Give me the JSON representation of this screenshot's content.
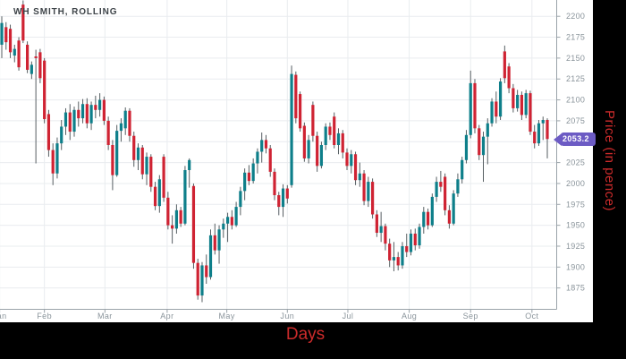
{
  "chart": {
    "last_price_label": "2053.2",
    "colors": {
      "background": "#000000",
      "panel_bg": "#ffffff",
      "up": "#0e7f8a",
      "down": "#cf2333",
      "wick": "#565e62",
      "grid": "#e9ecef",
      "axis": "#9aa3a9",
      "tick_text": "#8a949b",
      "title_text": "#3e4449",
      "axis_title_red": "#cc2b2b",
      "tag_bg": "#6c5bc4",
      "tag_text": "#ffffff"
    }
  },
  "chart_data": {
    "type": "candlestick",
    "title": "WH SMITH, ROLLING",
    "xlabel": "Days",
    "ylabel": "Price (in pence)",
    "legend": [],
    "grid": true,
    "last_price": 2053.2,
    "ylim": [
      1850,
      2220
    ],
    "y_ticks": [
      1875,
      1900,
      1925,
      1950,
      1975,
      2000,
      2025,
      2050,
      2075,
      2100,
      2125,
      2150,
      2175,
      2200
    ],
    "x_ticks": [
      {
        "label": "Jan",
        "i": -0.5
      },
      {
        "label": "Feb",
        "i": 10
      },
      {
        "label": "Mar",
        "i": 24.2
      },
      {
        "label": "Apr",
        "i": 38.8
      },
      {
        "label": "May",
        "i": 52.8
      },
      {
        "label": "Jun",
        "i": 67
      },
      {
        "label": "Jul",
        "i": 81.2
      },
      {
        "label": "Aug",
        "i": 95.6
      },
      {
        "label": "Sep",
        "i": 110
      },
      {
        "label": "Oct",
        "i": 124.4
      }
    ],
    "candles_format": [
      "open",
      "high",
      "low",
      "close"
    ],
    "candles": [
      [
        2166,
        2200,
        2150,
        2192
      ],
      [
        2187,
        2193,
        2160,
        2169
      ],
      [
        2185,
        2190,
        2150,
        2157
      ],
      [
        2153,
        2166,
        2145,
        2161
      ],
      [
        2171,
        2175,
        2135,
        2139
      ],
      [
        2214,
        2219,
        2168,
        2171
      ],
      [
        2166,
        2170,
        2132,
        2136
      ],
      [
        2131,
        2146,
        2125,
        2142
      ],
      [
        2152,
        2160,
        2024,
        2150
      ],
      [
        2157,
        2161,
        2120,
        2126
      ],
      [
        2147,
        2150,
        2072,
        2077
      ],
      [
        2083,
        2088,
        2032,
        2040
      ],
      [
        2040,
        2048,
        1998,
        2012
      ],
      [
        2012,
        2055,
        2006,
        2048
      ],
      [
        2048,
        2076,
        2040,
        2068
      ],
      [
        2068,
        2090,
        2058,
        2085
      ],
      [
        2085,
        2095,
        2052,
        2062
      ],
      [
        2062,
        2092,
        2056,
        2088
      ],
      [
        2088,
        2098,
        2068,
        2078
      ],
      [
        2078,
        2101,
        2072,
        2095
      ],
      [
        2095,
        2102,
        2066,
        2072
      ],
      [
        2072,
        2098,
        2064,
        2094
      ],
      [
        2094,
        2105,
        2078,
        2088
      ],
      [
        2088,
        2108,
        2080,
        2100
      ],
      [
        2100,
        2104,
        2070,
        2075
      ],
      [
        2075,
        2080,
        2040,
        2046
      ],
      [
        2046,
        2052,
        1992,
        2010
      ],
      [
        2010,
        2070,
        2008,
        2063
      ],
      [
        2063,
        2078,
        2050,
        2072
      ],
      [
        2066,
        2091,
        2058,
        2087
      ],
      [
        2087,
        2090,
        2050,
        2057
      ],
      [
        2057,
        2062,
        2020,
        2028
      ],
      [
        2028,
        2048,
        2016,
        2043
      ],
      [
        2043,
        2046,
        2005,
        2011
      ],
      [
        2011,
        2037,
        1998,
        2032
      ],
      [
        2032,
        2035,
        1990,
        1996
      ],
      [
        1996,
        2002,
        1968,
        1973
      ],
      [
        1973,
        2010,
        1965,
        2005
      ],
      [
        2032,
        2035,
        1978,
        1983
      ],
      [
        1983,
        1990,
        1945,
        1950
      ],
      [
        1950,
        1962,
        1928,
        1946
      ],
      [
        1946,
        1975,
        1940,
        1968
      ],
      [
        1968,
        1972,
        1948,
        1952
      ],
      [
        1952,
        2021,
        1950,
        2016
      ],
      [
        2016,
        2030,
        1995,
        2028
      ],
      [
        1997,
        2000,
        1898,
        1905
      ],
      [
        1905,
        1910,
        1861,
        1866
      ],
      [
        1866,
        1906,
        1858,
        1902
      ],
      [
        1902,
        1915,
        1880,
        1888
      ],
      [
        1888,
        1945,
        1885,
        1938
      ],
      [
        1938,
        1952,
        1915,
        1920
      ],
      [
        1920,
        1950,
        1904,
        1945
      ],
      [
        1945,
        1958,
        1935,
        1952
      ],
      [
        1952,
        1965,
        1930,
        1960
      ],
      [
        1960,
        1968,
        1945,
        1950
      ],
      [
        1950,
        1978,
        1948,
        1972
      ],
      [
        1972,
        1996,
        1962,
        1991
      ],
      [
        1991,
        2018,
        1980,
        2013
      ],
      [
        2013,
        2022,
        1998,
        2003
      ],
      [
        2003,
        2030,
        2000,
        2024
      ],
      [
        2024,
        2042,
        2012,
        2038
      ],
      [
        2038,
        2061,
        2025,
        2052
      ],
      [
        2052,
        2058,
        2036,
        2042
      ],
      [
        2042,
        2046,
        2008,
        2014
      ],
      [
        2014,
        2018,
        1980,
        1986
      ],
      [
        1986,
        1990,
        1962,
        1972
      ],
      [
        1972,
        1999,
        1960,
        1994
      ],
      [
        1994,
        1998,
        1976,
        1982
      ],
      [
        1998,
        2141,
        1995,
        2131
      ],
      [
        2130,
        2134,
        2072,
        2078
      ],
      [
        2107,
        2110,
        2062,
        2066
      ],
      [
        2069,
        2073,
        2026,
        2030
      ],
      [
        2030,
        2058,
        2024,
        2052
      ],
      [
        2094,
        2098,
        2050,
        2057
      ],
      [
        2057,
        2062,
        2014,
        2021
      ],
      [
        2021,
        2050,
        2018,
        2046
      ],
      [
        2046,
        2072,
        2040,
        2068
      ],
      [
        2068,
        2073,
        2052,
        2058
      ],
      [
        2080,
        2085,
        2042,
        2046
      ],
      [
        2046,
        2066,
        2035,
        2060
      ],
      [
        2060,
        2064,
        2030,
        2037
      ],
      [
        2037,
        2042,
        2016,
        2021
      ],
      [
        2021,
        2040,
        2012,
        2035
      ],
      [
        2035,
        2038,
        1998,
        2004
      ],
      [
        2004,
        2025,
        1996,
        2012
      ],
      [
        2012,
        2016,
        1974,
        1979
      ],
      [
        1979,
        2008,
        1972,
        2002
      ],
      [
        2002,
        2006,
        1958,
        1963
      ],
      [
        1963,
        1968,
        1936,
        1941
      ],
      [
        1941,
        1966,
        1930,
        1949
      ],
      [
        1949,
        1952,
        1920,
        1928
      ],
      [
        1928,
        1934,
        1900,
        1908
      ],
      [
        1908,
        1930,
        1895,
        1912
      ],
      [
        1912,
        1918,
        1896,
        1902
      ],
      [
        1902,
        1930,
        1898,
        1925
      ],
      [
        1925,
        1940,
        1912,
        1918
      ],
      [
        1918,
        1945,
        1914,
        1940
      ],
      [
        1940,
        1946,
        1920,
        1926
      ],
      [
        1926,
        1952,
        1922,
        1948
      ],
      [
        1948,
        1972,
        1940,
        1966
      ],
      [
        1966,
        1970,
        1945,
        1950
      ],
      [
        1950,
        1988,
        1948,
        1984
      ],
      [
        1984,
        2008,
        1978,
        2002
      ],
      [
        2002,
        2015,
        1990,
        1996
      ],
      [
        2008,
        2012,
        1962,
        1968
      ],
      [
        1968,
        1974,
        1946,
        1952
      ],
      [
        1952,
        1992,
        1950,
        1988
      ],
      [
        1988,
        2012,
        1984,
        2005
      ],
      [
        2005,
        2032,
        2000,
        2028
      ],
      [
        2028,
        2064,
        2024,
        2058
      ],
      [
        2058,
        2135,
        2054,
        2120
      ],
      [
        2120,
        2125,
        2060,
        2066
      ],
      [
        2066,
        2070,
        2028,
        2034
      ],
      [
        2034,
        2062,
        2002,
        2056
      ],
      [
        2056,
        2078,
        2023,
        2072
      ],
      [
        2072,
        2102,
        2068,
        2098
      ],
      [
        2098,
        2110,
        2072,
        2080
      ],
      [
        2080,
        2126,
        2076,
        2122
      ],
      [
        2158,
        2165,
        2120,
        2126
      ],
      [
        2140,
        2144,
        2108,
        2114
      ],
      [
        2114,
        2119,
        2085,
        2090
      ],
      [
        2090,
        2112,
        2086,
        2106
      ],
      [
        2106,
        2110,
        2076,
        2082
      ],
      [
        2082,
        2112,
        2078,
        2108
      ],
      [
        2108,
        2111,
        2058,
        2062
      ],
      [
        2062,
        2070,
        2042,
        2048
      ],
      [
        2048,
        2076,
        2045,
        2072
      ],
      [
        2072,
        2080,
        2052,
        2076
      ],
      [
        2076,
        2078,
        2030,
        2053.2
      ]
    ]
  }
}
